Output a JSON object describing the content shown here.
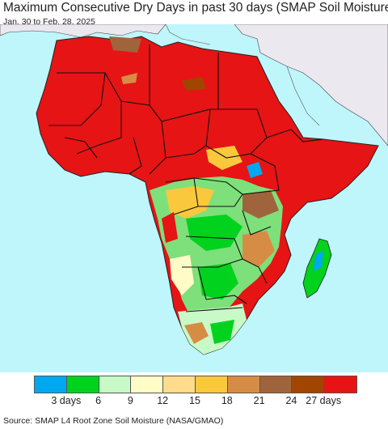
{
  "title": "Maximum Consecutive Dry Days in past 30 days (SMAP Soil Moisture)",
  "subtitle": "Jan. 30 to Feb. 28, 2025",
  "source": "Source: SMAP L4 Root Zone Soil Moisture (NASA/GMAO)",
  "colors": {
    "ocean": "#bff6fb",
    "no_data_land": "#ece8ef",
    "border": "#111111"
  },
  "legend": {
    "colors": [
      "#00a8f0",
      "#00d21e",
      "#c8fac8",
      "#fffcc8",
      "#ffdc8c",
      "#fac83c",
      "#d78c46",
      "#a0643c",
      "#a04600",
      "#e61414"
    ],
    "tick_labels": [
      "3 days",
      "6",
      "9",
      "12",
      "15",
      "18",
      "21",
      "24",
      "27 days"
    ]
  }
}
